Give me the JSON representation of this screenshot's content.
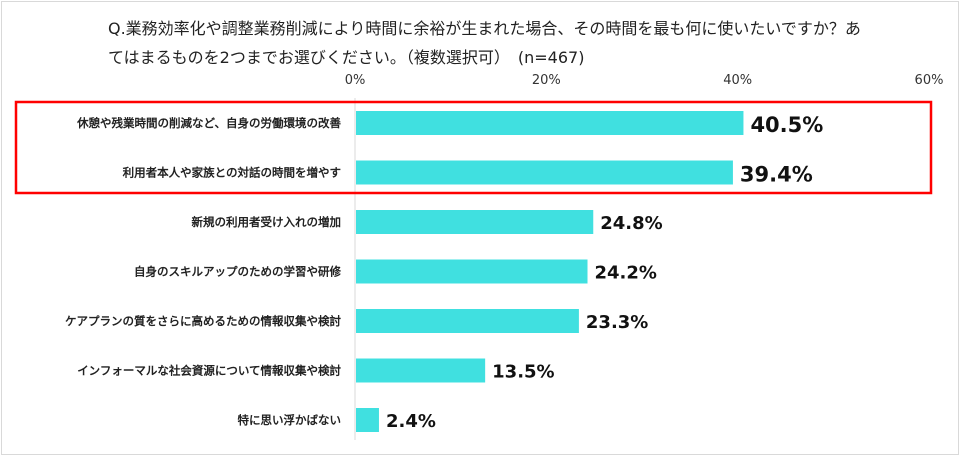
{
  "chart_data": {
    "type": "bar",
    "orientation": "horizontal",
    "title": "Q.業務効率化や調整業務削減により時間に余裕が生まれた場合、その時間を最も何に使いたいですか？あてはまるものを2つまでお選びください。（複数選択可）　(n=467)",
    "categories": [
      "休憩や残業時間の削減など、自身の労働環境の改善",
      "利用者本人や家族との対話の時間を増やす",
      "新規の利用者受け入れの増加",
      "自身のスキルアップのための学習や研修",
      "ケアプランの質をさらに高めるための情報収集や検討",
      "インフォーマルな社会資源について情報収集や検討",
      "特に思い浮かばない"
    ],
    "values": [
      40.5,
      39.4,
      24.8,
      24.2,
      23.3,
      13.5,
      2.4
    ],
    "data_labels": [
      "40.5%",
      "39.4%",
      "24.8%",
      "24.2%",
      "23.3%",
      "13.5%",
      "2.4%"
    ],
    "xlim": [
      0,
      60
    ],
    "ticks": [
      "0%",
      "20%",
      "40%",
      "60%"
    ],
    "tick_values": [
      0,
      20,
      40,
      60
    ],
    "axis_position": "top",
    "grid": false,
    "bar_color": "#40E0E0",
    "highlight_color": "#FF0000",
    "highlighted_categories": [
      0,
      1
    ]
  }
}
